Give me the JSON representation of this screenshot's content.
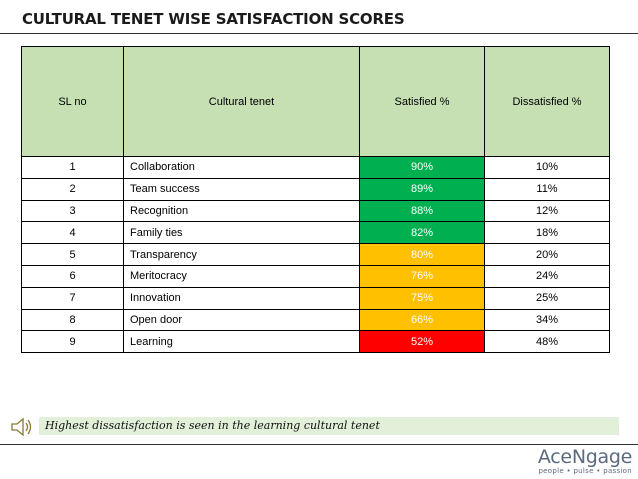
{
  "title": "CULTURAL TENET WISE SATISFACTION SCORES",
  "table": {
    "headers": [
      "SL no",
      "Cultural tenet",
      "Satisfied %",
      "Dissatisfied %"
    ],
    "rows": [
      {
        "sl": "1",
        "tenet": "Collaboration",
        "satisfied": "90%",
        "dissatisfied": "10%",
        "status": "green"
      },
      {
        "sl": "2",
        "tenet": "Team success",
        "satisfied": "89%",
        "dissatisfied": "11%",
        "status": "green"
      },
      {
        "sl": "3",
        "tenet": "Recognition",
        "satisfied": "88%",
        "dissatisfied": "12%",
        "status": "green"
      },
      {
        "sl": "4",
        "tenet": "Family ties",
        "satisfied": "82%",
        "dissatisfied": "18%",
        "status": "green"
      },
      {
        "sl": "5",
        "tenet": "Transparency",
        "satisfied": "80%",
        "dissatisfied": "20%",
        "status": "amber"
      },
      {
        "sl": "6",
        "tenet": "Meritocracy",
        "satisfied": "76%",
        "dissatisfied": "24%",
        "status": "amber"
      },
      {
        "sl": "7",
        "tenet": "Innovation",
        "satisfied": "75%",
        "dissatisfied": "25%",
        "status": "amber"
      },
      {
        "sl": "8",
        "tenet": "Open door",
        "satisfied": "66%",
        "dissatisfied": "34%",
        "status": "amber"
      },
      {
        "sl": "9",
        "tenet": "Learning",
        "satisfied": "52%",
        "dissatisfied": "48%",
        "status": "red"
      }
    ]
  },
  "colors": {
    "header_bg": "#c6e0b4",
    "green": "#00b050",
    "amber": "#ffc000",
    "red": "#ff0000"
  },
  "callout": {
    "text": "Highest dissatisfaction is seen in the learning cultural tenet",
    "icon": "speaker-icon"
  },
  "brand": {
    "name": "AceNgage",
    "tagline": "people • pulse • passion"
  }
}
